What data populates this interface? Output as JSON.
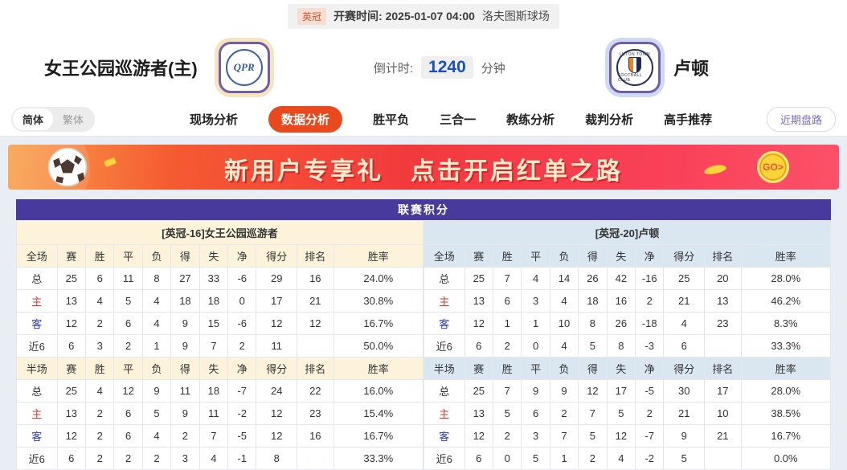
{
  "top_bar": {
    "league_badge": "英冠",
    "kickoff": "开赛时间:  2025-01-07 04:00",
    "venue": "洛夫图斯球场"
  },
  "header": {
    "home_team": "女王公园巡游者(主)",
    "away_team": "卢顿",
    "home_logo_text": "QPR",
    "away_logo_top": "LUTON TOWN",
    "away_logo_bottom": "FOOTBALL CLUB",
    "countdown_label": "倒计时:",
    "countdown_value": "1240",
    "countdown_unit": "分钟"
  },
  "nav": {
    "lang_simplified": "简体",
    "lang_traditional": "繁体",
    "tabs": [
      {
        "label": "现场分析",
        "active": false
      },
      {
        "label": "数据分析",
        "active": true
      },
      {
        "label": "胜平负",
        "active": false
      },
      {
        "label": "三合一",
        "active": false
      },
      {
        "label": "教练分析",
        "active": false
      },
      {
        "label": "裁判分析",
        "active": false
      },
      {
        "label": "高手推荐",
        "active": false
      }
    ],
    "recent_odds_button": "近期盘路"
  },
  "banner": {
    "text_left": "新用户专享礼",
    "text_right": "点击开启红单之路",
    "go_label": "GO>"
  },
  "standings": {
    "title": "联赛积分",
    "full_label": "全场",
    "half_label": "半场",
    "columns": [
      "赛",
      "胜",
      "平",
      "负",
      "得",
      "失",
      "净",
      "得分",
      "排名",
      "胜率"
    ],
    "accent_colors": {
      "title_bar": "#483a9d",
      "home_header": "#fcf3da",
      "away_header": "#dbe7f0",
      "active_tab": "#e8491d"
    },
    "home": {
      "header": "[英冠-16]女王公园巡游者",
      "full_rows": [
        {
          "label": "总",
          "type": "total",
          "cells": [
            "25",
            "6",
            "11",
            "8",
            "27",
            "33",
            "-6",
            "29",
            "16",
            "24.0%"
          ]
        },
        {
          "label": "主",
          "type": "home",
          "cells": [
            "13",
            "4",
            "5",
            "4",
            "18",
            "18",
            "0",
            "17",
            "21",
            "30.8%"
          ]
        },
        {
          "label": "客",
          "type": "away",
          "cells": [
            "12",
            "2",
            "6",
            "4",
            "9",
            "15",
            "-6",
            "12",
            "12",
            "16.7%"
          ]
        },
        {
          "label": "近6",
          "type": "near",
          "cells": [
            "6",
            "3",
            "2",
            "1",
            "9",
            "7",
            "2",
            "11",
            "",
            "50.0%"
          ]
        }
      ],
      "half_rows": [
        {
          "label": "总",
          "type": "total",
          "cells": [
            "25",
            "4",
            "12",
            "9",
            "11",
            "18",
            "-7",
            "24",
            "22",
            "16.0%"
          ]
        },
        {
          "label": "主",
          "type": "home",
          "cells": [
            "13",
            "2",
            "6",
            "5",
            "9",
            "11",
            "-2",
            "12",
            "23",
            "15.4%"
          ]
        },
        {
          "label": "客",
          "type": "away",
          "cells": [
            "12",
            "2",
            "6",
            "4",
            "2",
            "7",
            "-5",
            "12",
            "16",
            "16.7%"
          ]
        },
        {
          "label": "近6",
          "type": "near",
          "cells": [
            "6",
            "2",
            "2",
            "2",
            "3",
            "4",
            "-1",
            "8",
            "",
            "33.3%"
          ]
        }
      ]
    },
    "away": {
      "header": "[英冠-20]卢顿",
      "full_rows": [
        {
          "label": "总",
          "type": "total",
          "cells": [
            "25",
            "7",
            "4",
            "14",
            "26",
            "42",
            "-16",
            "25",
            "20",
            "28.0%"
          ]
        },
        {
          "label": "主",
          "type": "home",
          "cells": [
            "13",
            "6",
            "3",
            "4",
            "18",
            "16",
            "2",
            "21",
            "13",
            "46.2%"
          ]
        },
        {
          "label": "客",
          "type": "away",
          "cells": [
            "12",
            "1",
            "1",
            "10",
            "8",
            "26",
            "-18",
            "4",
            "23",
            "8.3%"
          ]
        },
        {
          "label": "近6",
          "type": "near",
          "cells": [
            "6",
            "2",
            "0",
            "4",
            "5",
            "8",
            "-3",
            "6",
            "",
            "33.3%"
          ]
        }
      ],
      "half_rows": [
        {
          "label": "总",
          "type": "total",
          "cells": [
            "25",
            "7",
            "9",
            "9",
            "12",
            "17",
            "-5",
            "30",
            "17",
            "28.0%"
          ]
        },
        {
          "label": "主",
          "type": "home",
          "cells": [
            "13",
            "5",
            "6",
            "2",
            "7",
            "5",
            "2",
            "21",
            "10",
            "38.5%"
          ]
        },
        {
          "label": "客",
          "type": "away",
          "cells": [
            "12",
            "2",
            "3",
            "7",
            "5",
            "12",
            "-7",
            "9",
            "21",
            "16.7%"
          ]
        },
        {
          "label": "近6",
          "type": "near",
          "cells": [
            "6",
            "0",
            "5",
            "1",
            "2",
            "4",
            "-2",
            "5",
            "",
            "0.0%"
          ]
        }
      ]
    }
  }
}
